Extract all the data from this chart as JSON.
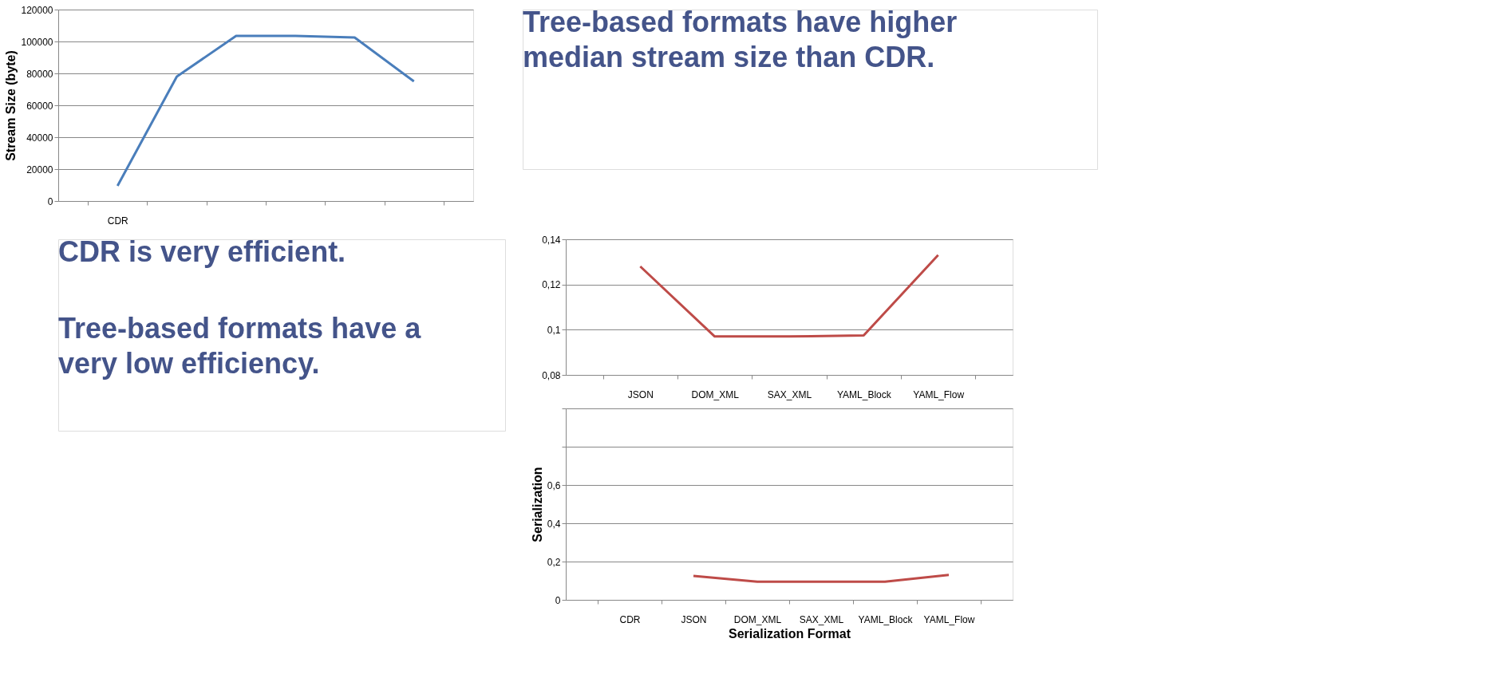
{
  "chart_data": [
    {
      "type": "line",
      "ylabel": "Stream Size (byte)",
      "categories": [
        "CDR",
        null,
        null,
        null,
        null,
        null
      ],
      "series": [
        {
          "color": "#4a7ebb",
          "values": [
            9500,
            78000,
            103500,
            103500,
            102500,
            75000
          ]
        }
      ],
      "ylim": [
        0,
        120000
      ],
      "yticks": [
        0,
        20000,
        40000,
        60000,
        80000,
        100000,
        120000
      ],
      "grid": "y",
      "annotations": [
        "Tree-based formats have higher median stream size than CDR."
      ]
    },
    {
      "type": "line",
      "categories": [
        "JSON",
        "DOM_XML",
        "SAX_XML",
        "YAML_Block",
        "YAML_Flow"
      ],
      "series": [
        {
          "color": "#be4b48",
          "values": [
            0.128,
            0.097,
            0.097,
            0.0975,
            0.133
          ]
        }
      ],
      "ylim": [
        0.08,
        0.14
      ],
      "yticks": [
        {
          "value": 0.08,
          "label": "0,08"
        },
        {
          "value": 0.1,
          "label": "0,1"
        },
        {
          "value": 0.12,
          "label": "0,12"
        },
        {
          "value": 0.14,
          "label": "0,14"
        }
      ],
      "grid": "y"
    },
    {
      "type": "line",
      "ylabel": "Serialization",
      "xlabel": "Serialization Format",
      "categories": [
        "CDR",
        "JSON",
        "DOM_XML",
        "SAX_XML",
        "YAML_Block",
        "YAML_Flow"
      ],
      "series": [
        {
          "color": "#be4b48",
          "values": [
            null,
            0.125,
            0.095,
            0.095,
            0.095,
            0.13
          ]
        }
      ],
      "ylim": [
        0,
        1.0
      ],
      "yticks": [
        0,
        {
          "value": 0.2,
          "label": "0,2"
        },
        {
          "value": 0.4,
          "label": "0,4"
        },
        {
          "value": 0.6,
          "label": "0,6"
        },
        {
          "value": 0.8,
          "label": null
        },
        {
          "value": 1.0,
          "label": null
        }
      ],
      "grid": "y",
      "annotations": [
        "CDR is very efficient.",
        "Tree-based formats have a very low efficiency."
      ]
    }
  ]
}
